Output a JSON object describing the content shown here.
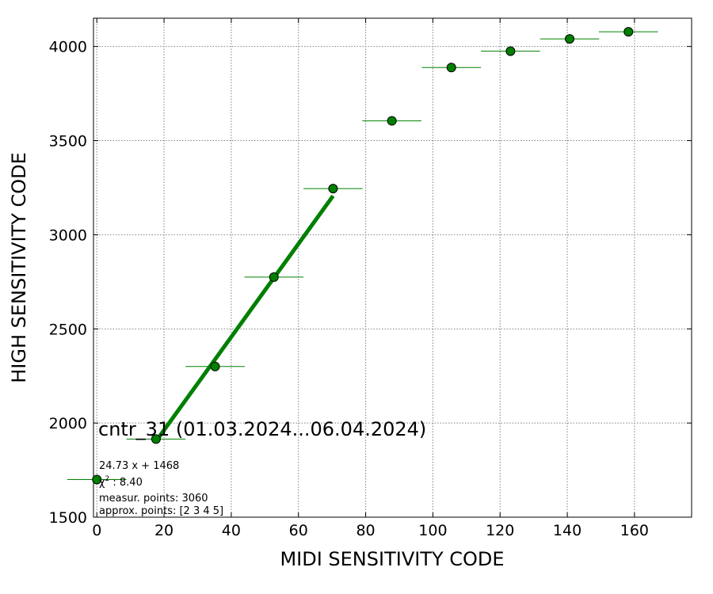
{
  "chart_data": {
    "type": "scatter",
    "xlabel": "MIDI SENSITIVITY CODE",
    "ylabel": "HIGH SENSITIVITY CODE",
    "xlim": [
      -1,
      177
    ],
    "ylim": [
      1500,
      4150
    ],
    "xticks": [
      0,
      20,
      40,
      60,
      80,
      100,
      120,
      140,
      160
    ],
    "yticks": [
      1500,
      2000,
      2500,
      3000,
      3500,
      4000
    ],
    "grid": true,
    "points": [
      {
        "x": 0,
        "y": 1700,
        "xerr": 8.8
      },
      {
        "x": 17.6,
        "y": 1915,
        "xerr": 8.8
      },
      {
        "x": 35.2,
        "y": 2300,
        "xerr": 8.8
      },
      {
        "x": 52.7,
        "y": 2775,
        "xerr": 8.8
      },
      {
        "x": 70.3,
        "y": 3245,
        "xerr": 8.8
      },
      {
        "x": 87.8,
        "y": 3605,
        "xerr": 8.8
      },
      {
        "x": 105.5,
        "y": 3888,
        "xerr": 8.8
      },
      {
        "x": 123.1,
        "y": 3975,
        "xerr": 8.8
      },
      {
        "x": 140.7,
        "y": 4040,
        "xerr": 8.8
      },
      {
        "x": 158.2,
        "y": 4078,
        "xerr": 8.8
      }
    ],
    "fit": {
      "slope": 24.73,
      "intercept": 1468,
      "x_range": [
        17.6,
        70.3
      ]
    },
    "colors": {
      "points": "#008000",
      "fit": "#008000",
      "grid": "#808080"
    },
    "annotations": {
      "title": "cntr_31 (01.03.2024...06.04.2024)",
      "equation": "24.73 x + 1468",
      "chi_label": "χ",
      "chi_sup": "2",
      "chi_value": " : 8.40",
      "measur": "measur. points: 3060",
      "approx": "approx. points: [2 3 4 5]"
    }
  }
}
